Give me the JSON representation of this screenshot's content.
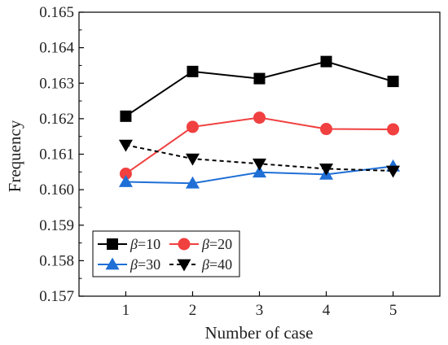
{
  "chart_data": {
    "type": "line",
    "xlabel": "Number of case",
    "ylabel": "Frequency",
    "x": [
      1,
      2,
      3,
      4,
      5
    ],
    "xlim": [
      0.3,
      5.7
    ],
    "ylim": [
      0.157,
      0.165
    ],
    "xticks": [
      "1",
      "2",
      "3",
      "4",
      "5"
    ],
    "yticks": [
      "0.157",
      "0.158",
      "0.159",
      "0.160",
      "0.161",
      "0.162",
      "0.163",
      "0.164",
      "0.165"
    ],
    "legend_position": "bottom-left",
    "series": [
      {
        "name": "β=10",
        "symbol": "β",
        "suffix": "=10",
        "color": "#000000",
        "marker": "square",
        "dash": "solid",
        "values": [
          0.16207,
          0.16333,
          0.16313,
          0.16361,
          0.16305
        ]
      },
      {
        "name": "β=20",
        "symbol": "β",
        "suffix": "=20",
        "color": "#f04040",
        "marker": "circle",
        "dash": "solid",
        "values": [
          0.16045,
          0.16177,
          0.16203,
          0.16171,
          0.1617
        ]
      },
      {
        "name": "β=30",
        "symbol": "β",
        "suffix": "=30",
        "color": "#1f6fd6",
        "marker": "triangle-up",
        "dash": "solid",
        "values": [
          0.16022,
          0.16018,
          0.16049,
          0.16043,
          0.16066
        ]
      },
      {
        "name": "β=40",
        "symbol": "β",
        "suffix": "=40",
        "color": "#000000",
        "marker": "triangle-down",
        "dash": "dashed",
        "values": [
          0.16126,
          0.16087,
          0.16073,
          0.16059,
          0.16053
        ]
      }
    ]
  }
}
